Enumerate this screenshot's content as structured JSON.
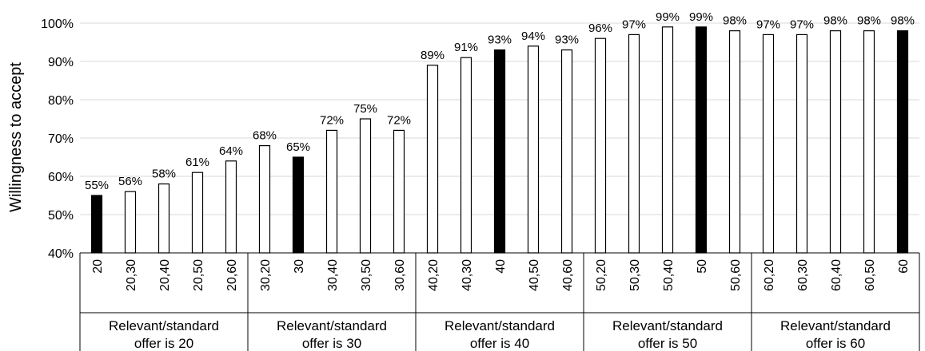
{
  "chart_data": {
    "type": "bar",
    "ylabel": "Willingness to accept",
    "ylim": [
      0.4,
      1.0
    ],
    "yticks": [
      0.4,
      0.5,
      0.6,
      0.7,
      0.8,
      0.9,
      1.0
    ],
    "ytick_labels": [
      "40%",
      "50%",
      "60%",
      "70%",
      "80%",
      "90%",
      "100%"
    ],
    "grid": true,
    "groups": [
      {
        "label_line1": "Relevant/standard",
        "label_line2": "offer is 20",
        "categories": [
          "20",
          "20,30",
          "20,40",
          "20,50",
          "20,60"
        ],
        "values": [
          0.55,
          0.56,
          0.58,
          0.61,
          0.64
        ],
        "labels": [
          "55%",
          "56%",
          "58%",
          "61%",
          "64%"
        ],
        "highlight_index": 0
      },
      {
        "label_line1": "Relevant/standard",
        "label_line2": "offer is 30",
        "categories": [
          "30,20",
          "30",
          "30,40",
          "30,50",
          "30,60"
        ],
        "values": [
          0.68,
          0.65,
          0.72,
          0.75,
          0.72
        ],
        "labels": [
          "68%",
          "65%",
          "72%",
          "75%",
          "72%"
        ],
        "highlight_index": 1
      },
      {
        "label_line1": "Relevant/standard",
        "label_line2": "offer is 40",
        "categories": [
          "40,20",
          "40,30",
          "40",
          "40,50",
          "40,60"
        ],
        "values": [
          0.89,
          0.91,
          0.93,
          0.94,
          0.93
        ],
        "labels": [
          "89%",
          "91%",
          "93%",
          "94%",
          "93%"
        ],
        "highlight_index": 2
      },
      {
        "label_line1": "Relevant/standard",
        "label_line2": "offer is 50",
        "categories": [
          "50,20",
          "50,30",
          "50,40",
          "50",
          "50,60"
        ],
        "values": [
          0.96,
          0.97,
          0.99,
          0.99,
          0.98
        ],
        "labels": [
          "96%",
          "97%",
          "99%",
          "99%",
          "98%"
        ],
        "highlight_index": 3
      },
      {
        "label_line1": "Relevant/standard",
        "label_line2": "offer is 60",
        "categories": [
          "60,20",
          "60,30",
          "60,40",
          "60,50",
          "60"
        ],
        "values": [
          0.97,
          0.97,
          0.98,
          0.98,
          0.98
        ],
        "labels": [
          "97%",
          "97%",
          "98%",
          "98%",
          "98%"
        ],
        "highlight_index": 4
      }
    ],
    "colors": {
      "highlight_fill": "#000000",
      "bar_fill": "#ffffff",
      "bar_stroke": "#000000",
      "grid": "#d9d9d9",
      "axis": "#000000"
    }
  }
}
